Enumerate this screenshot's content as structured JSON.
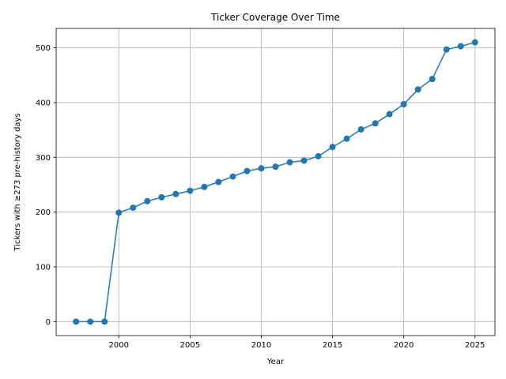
{
  "chart_data": {
    "type": "line",
    "title": "Ticker Coverage Over Time",
    "xlabel": "Year",
    "ylabel": "Tickers with ≥273 pre-history days",
    "x": [
      1997,
      1998,
      1999,
      2000,
      2001,
      2002,
      2003,
      2004,
      2005,
      2006,
      2007,
      2008,
      2009,
      2010,
      2011,
      2012,
      2013,
      2014,
      2015,
      2016,
      2017,
      2018,
      2019,
      2020,
      2021,
      2022,
      2023,
      2024,
      2025
    ],
    "series": [
      {
        "values": [
          0,
          0,
          0,
          199,
          208,
          220,
          227,
          233,
          239,
          246,
          255,
          265,
          275,
          280,
          283,
          291,
          294,
          302,
          319,
          334,
          351,
          362,
          379,
          397,
          424,
          443,
          497,
          503,
          510
        ],
        "color": "#1f77b4",
        "marker": "circle"
      }
    ],
    "xlim": [
      1995.6,
      2026.4
    ],
    "ylim": [
      -25.5,
      535.5
    ],
    "xticks": [
      2000,
      2005,
      2010,
      2015,
      2020,
      2025
    ],
    "yticks": [
      0,
      100,
      200,
      300,
      400,
      500
    ],
    "grid": true,
    "legend": "none"
  }
}
